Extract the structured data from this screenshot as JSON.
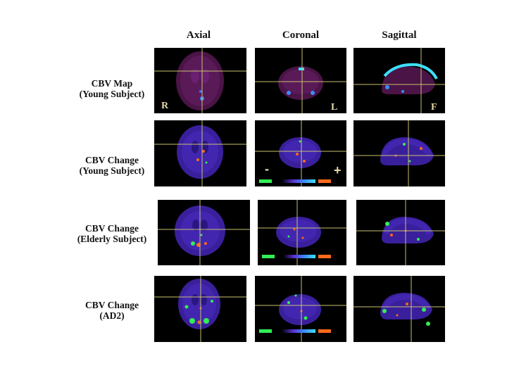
{
  "columns": {
    "axial": "Axial",
    "coronal": "Coronal",
    "sagittal": "Sagittal"
  },
  "rows": [
    {
      "line1": "CBV Map",
      "line2": "(Young Subject)"
    },
    {
      "line1": "CBV Change",
      "line2": "(Young Subject)"
    },
    {
      "line1": "CBV Change",
      "line2": "(Elderly Subject)"
    },
    {
      "line1": "CBV Change",
      "line2": "(AD2)"
    }
  ],
  "orientation": {
    "right": "R",
    "left": "L",
    "front": "F"
  },
  "scale": {
    "minus": "-",
    "plus": "+"
  },
  "colors": {
    "background": "#000000",
    "brain_base": "#3a1f9c",
    "map_base": "#4a1446",
    "crosshair": "#c8c070",
    "increase": "#ff6a1a",
    "decrease": "#33ee55"
  }
}
